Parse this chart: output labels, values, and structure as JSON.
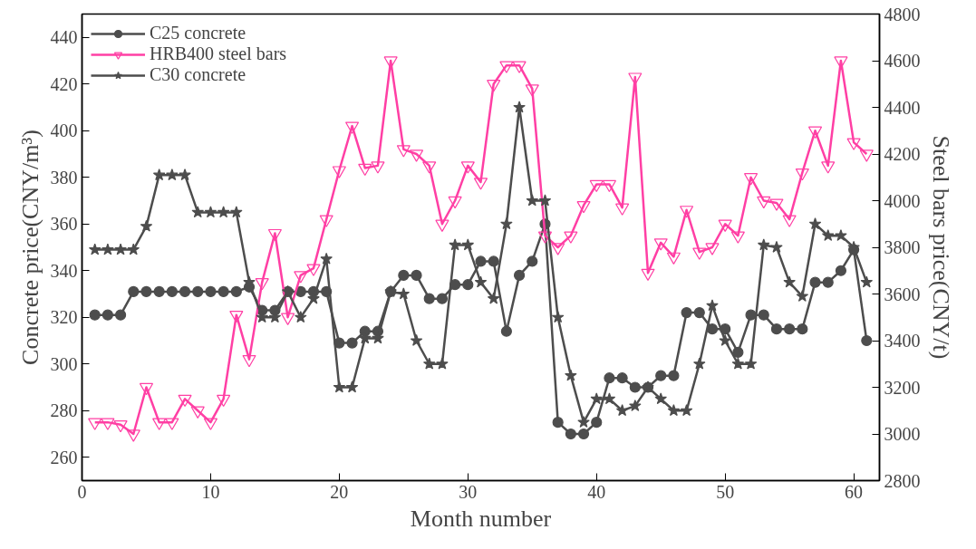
{
  "chart_data": {
    "type": "line",
    "xlabel": "Month number",
    "ylabel": "Concrete price(CNY/m³)",
    "y2label": "Steel bars price(CNY/t)",
    "x": [
      1,
      2,
      3,
      4,
      5,
      6,
      7,
      8,
      9,
      10,
      11,
      12,
      13,
      14,
      15,
      16,
      17,
      18,
      19,
      20,
      21,
      22,
      23,
      24,
      25,
      26,
      27,
      28,
      29,
      30,
      31,
      32,
      33,
      34,
      35,
      36,
      37,
      38,
      39,
      40,
      41,
      42,
      43,
      44,
      45,
      46,
      47,
      48,
      49,
      50,
      51,
      52,
      53,
      54,
      55,
      56,
      57,
      58,
      59,
      60,
      61
    ],
    "series": [
      {
        "name": "C25 concrete",
        "color": "#4d4d4d",
        "marker": "circle",
        "values": [
          321,
          321,
          321,
          331,
          331,
          331,
          331,
          331,
          331,
          331,
          331,
          331,
          333,
          323,
          323,
          331,
          331,
          331,
          331,
          309,
          309,
          314,
          314,
          331,
          338,
          338,
          328,
          328,
          334,
          334,
          344,
          344,
          314,
          338,
          344,
          360,
          275,
          270,
          270,
          275,
          294,
          294,
          290,
          290,
          295,
          295,
          322,
          322,
          315,
          315,
          305,
          321,
          321,
          315,
          315,
          315,
          335,
          335,
          340,
          349,
          310
        ]
      },
      {
        "name": "HRB400 steel bars",
        "color": "#ff3fa4",
        "marker": "triangle",
        "axis": "y2",
        "values": [
          3050,
          3050,
          3040,
          3000,
          3200,
          3050,
          3050,
          3150,
          3100,
          3050,
          3150,
          3510,
          3320,
          3650,
          3860,
          3500,
          3680,
          3710,
          3920,
          4130,
          4320,
          4140,
          4150,
          4600,
          4220,
          4200,
          4150,
          3900,
          4000,
          4150,
          4080,
          4500,
          4580,
          4580,
          4480,
          3850,
          3800,
          3850,
          3980,
          4070,
          4070,
          3970,
          4530,
          3690,
          3820,
          3760,
          3960,
          3780,
          3800,
          3900,
          3850,
          4100,
          4000,
          3990,
          3920,
          4120,
          4300,
          4150,
          4600,
          4250,
          4200
        ]
      },
      {
        "name": "C30 concrete",
        "color": "#4d4d4d",
        "marker": "star",
        "values": [
          349,
          349,
          349,
          349,
          359,
          381,
          381,
          381,
          365,
          365,
          365,
          365,
          335,
          320,
          320,
          331,
          320,
          328,
          345,
          290,
          290,
          311,
          311,
          331,
          330,
          310,
          300,
          300,
          351,
          351,
          335,
          328,
          360,
          410,
          370,
          370,
          320,
          295,
          275,
          285,
          285,
          280,
          282,
          290,
          285,
          280,
          280,
          300,
          325,
          310,
          300,
          300,
          351,
          350,
          335,
          329,
          360,
          355,
          355,
          350,
          335
        ]
      }
    ],
    "xlim": [
      0,
      62
    ],
    "xticks": [
      0,
      10,
      20,
      30,
      40,
      50,
      60
    ],
    "ylim": [
      250,
      450
    ],
    "yticks": [
      260,
      280,
      300,
      320,
      340,
      360,
      380,
      400,
      420,
      440
    ],
    "y2lim": [
      2800,
      4800
    ],
    "y2ticks": [
      2800,
      3000,
      3200,
      3400,
      3600,
      3800,
      4000,
      4200,
      4400,
      4600,
      4800
    ],
    "legend": "top left",
    "grid": false,
    "line_style": "solid"
  }
}
